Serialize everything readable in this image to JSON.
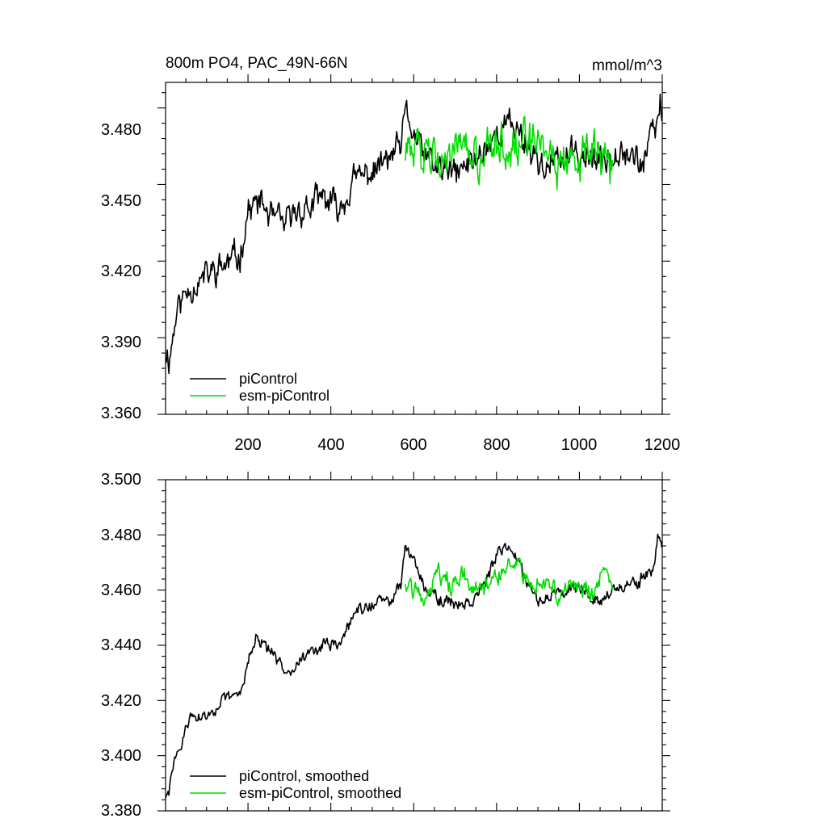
{
  "colors": {
    "picontrol": "#000000",
    "esm_picontrol": "#00dd00",
    "axis": "#000000"
  },
  "chart_data": [
    {
      "type": "line",
      "title": "800m PO4, PAC_49N-66N",
      "units": "mmol/m^3",
      "xlim": [
        1,
        1200
      ],
      "ylim": [
        3.36,
        3.49
      ],
      "x_ticks": [
        200,
        400,
        600,
        800,
        1000,
        1200
      ],
      "x_tick_labels": [
        "200",
        "400",
        "600",
        "800",
        "1000",
        "1200"
      ],
      "y_ticks": [
        3.36,
        3.39,
        3.42,
        3.45,
        3.48
      ],
      "y_tick_labels": [
        "3.360",
        "3.390",
        "3.420",
        "3.450",
        "3.480"
      ],
      "legend_position": "bottom-left",
      "series": [
        {
          "name": "piControl",
          "color": "#000000",
          "x": [
            1,
            10,
            30,
            60,
            100,
            140,
            180,
            200,
            230,
            260,
            290,
            320,
            350,
            380,
            420,
            460,
            500,
            540,
            570,
            580,
            620,
            660,
            700,
            750,
            800,
            830,
            850,
            880,
            920,
            960,
            1000,
            1050,
            1100,
            1150,
            1180,
            1195,
            1200
          ],
          "values": [
            3.385,
            3.382,
            3.402,
            3.41,
            3.414,
            3.418,
            3.422,
            3.44,
            3.443,
            3.436,
            3.434,
            3.44,
            3.441,
            3.445,
            3.44,
            3.452,
            3.455,
            3.46,
            3.465,
            3.478,
            3.462,
            3.456,
            3.454,
            3.46,
            3.47,
            3.474,
            3.472,
            3.464,
            3.456,
            3.46,
            3.462,
            3.458,
            3.466,
            3.458,
            3.47,
            3.48,
            3.476
          ],
          "noise": 0.005
        },
        {
          "name": "esm-piControl",
          "color": "#00dd00",
          "x": [
            580,
            600,
            640,
            680,
            720,
            760,
            800,
            840,
            880,
            920,
            960,
            1000,
            1040,
            1080
          ],
          "values": [
            3.464,
            3.462,
            3.465,
            3.462,
            3.463,
            3.458,
            3.466,
            3.468,
            3.464,
            3.462,
            3.458,
            3.46,
            3.462,
            3.458
          ],
          "noise": 0.007
        }
      ]
    },
    {
      "type": "line",
      "title": "",
      "xlim": [
        1,
        1200
      ],
      "ylim": [
        3.38,
        3.5
      ],
      "x_ticks": [
        200,
        400,
        600,
        800,
        1000,
        1200
      ],
      "y_ticks": [
        3.38,
        3.4,
        3.42,
        3.44,
        3.46,
        3.48,
        3.5
      ],
      "y_tick_labels": [
        "3.380",
        "3.400",
        "3.420",
        "3.440",
        "3.460",
        "3.480",
        "3.500"
      ],
      "legend_position": "bottom-left",
      "series": [
        {
          "name": "piControl, smoothed",
          "color": "#000000",
          "x": [
            1,
            10,
            20,
            40,
            60,
            100,
            140,
            180,
            200,
            220,
            240,
            260,
            280,
            300,
            340,
            380,
            420,
            460,
            500,
            540,
            570,
            580,
            600,
            630,
            670,
            700,
            740,
            780,
            800,
            830,
            850,
            880,
            900,
            930,
            960,
            1000,
            1050,
            1100,
            1140,
            1180,
            1190,
            1200
          ],
          "values": [
            3.385,
            3.386,
            3.398,
            3.404,
            3.414,
            3.414,
            3.42,
            3.422,
            3.435,
            3.442,
            3.44,
            3.436,
            3.432,
            3.432,
            3.436,
            3.44,
            3.44,
            3.452,
            3.455,
            3.456,
            3.462,
            3.476,
            3.472,
            3.46,
            3.456,
            3.455,
            3.456,
            3.465,
            3.472,
            3.476,
            3.472,
            3.462,
            3.456,
            3.458,
            3.46,
            3.462,
            3.456,
            3.462,
            3.462,
            3.468,
            3.48,
            3.476
          ],
          "noise": 0.002
        },
        {
          "name": "esm-piControl, smoothed",
          "color": "#00dd00",
          "x": [
            580,
            600,
            630,
            660,
            690,
            720,
            760,
            800,
            830,
            860,
            890,
            920,
            950,
            980,
            1010,
            1040,
            1060,
            1080
          ],
          "values": [
            3.463,
            3.46,
            3.458,
            3.466,
            3.462,
            3.467,
            3.458,
            3.466,
            3.468,
            3.467,
            3.462,
            3.464,
            3.458,
            3.462,
            3.46,
            3.46,
            3.466,
            3.458
          ],
          "noise": 0.003
        }
      ]
    }
  ]
}
